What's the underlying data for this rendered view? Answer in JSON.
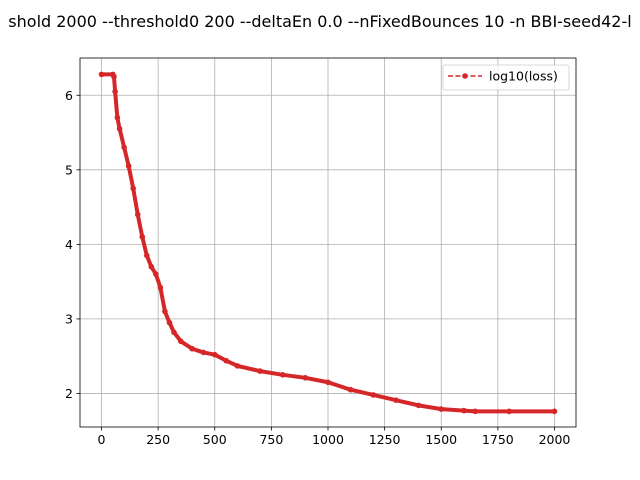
{
  "chart_data": {
    "type": "line",
    "title": "shold 2000 --threshold0 200 --deltaEn 0.0 --nFixedBounces 10 -n BBI-seed42-l",
    "xlabel": "",
    "ylabel": "",
    "xlim": [
      -95,
      2095
    ],
    "ylim": [
      1.55,
      6.5
    ],
    "xticks": [
      0,
      250,
      500,
      750,
      1000,
      1250,
      1500,
      1750,
      2000
    ],
    "xtick_labels": [
      "0",
      "250",
      "500",
      "750",
      "1000",
      "1250",
      "1500",
      "1750",
      "2000"
    ],
    "yticks": [
      2,
      3,
      4,
      5,
      6
    ],
    "ytick_labels": [
      "2",
      "3",
      "4",
      "5",
      "6"
    ],
    "grid": true,
    "legend_position": "top-right",
    "series": [
      {
        "name": "log10(loss)",
        "color": "#d62728",
        "line_style": "dashed",
        "marker": "dot",
        "points": [
          [
            0,
            6.28
          ],
          [
            50,
            6.28
          ],
          [
            55,
            6.25
          ],
          [
            60,
            6.05
          ],
          [
            70,
            5.7
          ],
          [
            80,
            5.55
          ],
          [
            100,
            5.3
          ],
          [
            120,
            5.05
          ],
          [
            140,
            4.75
          ],
          [
            160,
            4.4
          ],
          [
            180,
            4.1
          ],
          [
            200,
            3.85
          ],
          [
            220,
            3.7
          ],
          [
            240,
            3.6
          ],
          [
            260,
            3.42
          ],
          [
            280,
            3.1
          ],
          [
            300,
            2.95
          ],
          [
            320,
            2.82
          ],
          [
            350,
            2.7
          ],
          [
            400,
            2.6
          ],
          [
            450,
            2.55
          ],
          [
            500,
            2.52
          ],
          [
            550,
            2.44
          ],
          [
            600,
            2.37
          ],
          [
            700,
            2.3
          ],
          [
            800,
            2.25
          ],
          [
            900,
            2.21
          ],
          [
            1000,
            2.15
          ],
          [
            1100,
            2.05
          ],
          [
            1200,
            1.98
          ],
          [
            1300,
            1.91
          ],
          [
            1400,
            1.84
          ],
          [
            1500,
            1.79
          ],
          [
            1600,
            1.77
          ],
          [
            1650,
            1.76
          ],
          [
            1800,
            1.76
          ],
          [
            2000,
            1.76
          ]
        ]
      }
    ]
  }
}
